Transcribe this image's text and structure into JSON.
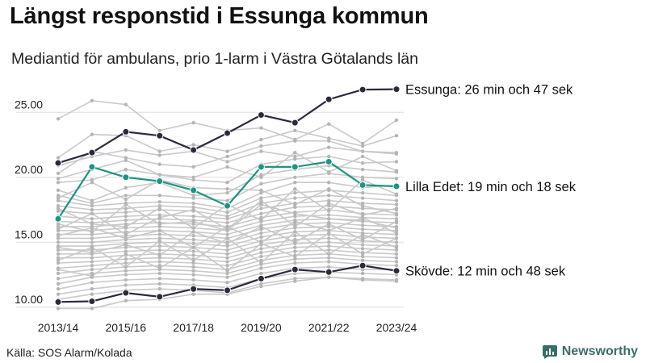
{
  "header": {
    "title": "Längst responstid i Essunga kommun",
    "subtitle": "Mediantid för ambulans, prio 1-larm i Västra Götalands län"
  },
  "footer": {
    "source": "Källa: SOS Alarm/Kolada",
    "brand": "Newsworthy"
  },
  "colors": {
    "background_series": "#c9c9c9",
    "background_points": "#b5b5b5",
    "highlight_dark": "#2b2a3d",
    "highlight_teal": "#1e9484",
    "grid": "#dddddd",
    "brand": "#3a6e68"
  },
  "chart_data": {
    "type": "line",
    "x": [
      "2013/14",
      "2014/15",
      "2015/16",
      "2016/17",
      "2017/18",
      "2018/19",
      "2019/20",
      "2020/21",
      "2021/22",
      "2022/23",
      "2023/24"
    ],
    "x_tick_labels": [
      "2013/14",
      "2015/16",
      "2017/18",
      "2019/20",
      "2021/22",
      "2023/24"
    ],
    "ylim": [
      9.8,
      27.5
    ],
    "y_ticks": [
      10,
      15,
      20,
      25
    ],
    "y_tick_labels": [
      "10.00",
      "15.00",
      "20.00",
      "25.00"
    ],
    "grid": true,
    "highlighted": [
      {
        "name": "Essunga",
        "label": "Essunga: 26 min och 47 sek",
        "color": "#2b2a3d",
        "values": [
          21.1,
          21.9,
          23.5,
          23.2,
          22.1,
          23.4,
          24.8,
          24.2,
          26.0,
          26.75,
          26.78
        ]
      },
      {
        "name": "Lilla Edet",
        "label": "Lilla Edet: 19 min och 18 sek",
        "color": "#1e9484",
        "values": [
          16.8,
          20.8,
          20.0,
          19.7,
          19.0,
          17.8,
          20.8,
          20.8,
          21.2,
          19.4,
          19.3
        ]
      },
      {
        "name": "Skövde",
        "label": "Skövde: 12 min och 48 sek",
        "color": "#2b2a3d",
        "values": [
          10.4,
          10.45,
          11.1,
          10.8,
          11.4,
          11.3,
          12.2,
          12.9,
          12.7,
          13.2,
          12.8
        ]
      }
    ],
    "other_series": [
      [
        24.5,
        25.9,
        25.6,
        23.6,
        24.2,
        23.6,
        23.8,
        22.9,
        24.1,
        22.6,
        24.4
      ],
      [
        21.5,
        23.3,
        23.2,
        22.0,
        22.5,
        22.0,
        22.9,
        23.6,
        23.0,
        22.4,
        23.2
      ],
      [
        20.3,
        22.0,
        21.5,
        21.0,
        20.8,
        21.6,
        22.4,
        22.8,
        22.8,
        22.0,
        21.8
      ],
      [
        19.6,
        19.8,
        20.6,
        20.2,
        19.8,
        19.6,
        21.0,
        21.4,
        21.6,
        21.1,
        21.2
      ],
      [
        19.0,
        18.2,
        19.2,
        19.6,
        18.6,
        18.8,
        20.2,
        20.6,
        20.9,
        20.6,
        20.4
      ],
      [
        18.6,
        18.0,
        18.6,
        18.6,
        18.4,
        18.2,
        19.5,
        20.0,
        20.3,
        20.0,
        19.9
      ],
      [
        18.2,
        17.8,
        18.0,
        18.1,
        18.0,
        17.6,
        18.8,
        19.6,
        19.6,
        19.2,
        19.4
      ],
      [
        17.8,
        17.5,
        17.6,
        17.8,
        17.7,
        17.3,
        18.4,
        18.8,
        19.0,
        18.8,
        18.6
      ],
      [
        17.4,
        17.2,
        17.3,
        17.5,
        17.4,
        17.0,
        18.0,
        18.4,
        18.6,
        18.4,
        18.2
      ],
      [
        17.0,
        16.8,
        17.0,
        17.1,
        17.0,
        16.8,
        17.6,
        18.0,
        18.2,
        18.0,
        17.9
      ],
      [
        16.6,
        16.5,
        16.7,
        16.8,
        16.7,
        16.5,
        17.2,
        17.7,
        17.8,
        17.6,
        17.5
      ],
      [
        16.2,
        16.2,
        16.4,
        16.5,
        16.4,
        16.2,
        16.9,
        17.3,
        17.5,
        17.2,
        17.1
      ],
      [
        15.9,
        15.9,
        16.1,
        16.2,
        16.1,
        15.9,
        16.6,
        17.0,
        17.1,
        16.9,
        16.8
      ],
      [
        15.6,
        15.6,
        15.8,
        15.9,
        15.8,
        15.6,
        16.3,
        16.7,
        16.8,
        16.6,
        16.5
      ],
      [
        15.3,
        15.3,
        15.5,
        15.6,
        15.5,
        15.3,
        16.0,
        16.4,
        16.5,
        16.3,
        16.2
      ],
      [
        15.0,
        15.0,
        15.2,
        15.3,
        15.2,
        15.0,
        15.7,
        16.1,
        16.2,
        16.0,
        15.9
      ],
      [
        14.7,
        14.7,
        14.9,
        15.0,
        14.9,
        14.7,
        15.4,
        15.8,
        15.9,
        15.7,
        15.6
      ],
      [
        14.4,
        14.4,
        14.6,
        14.7,
        14.6,
        14.4,
        15.1,
        15.5,
        15.6,
        15.4,
        15.3
      ],
      [
        14.1,
        14.1,
        14.3,
        14.4,
        14.3,
        14.1,
        14.8,
        15.2,
        15.3,
        15.1,
        15.0
      ],
      [
        13.8,
        13.8,
        14.0,
        14.1,
        14.0,
        13.8,
        14.5,
        14.9,
        15.0,
        14.8,
        14.7
      ],
      [
        13.4,
        13.5,
        13.7,
        13.8,
        13.7,
        13.5,
        14.2,
        14.6,
        14.7,
        14.5,
        14.4
      ],
      [
        13.0,
        13.2,
        13.4,
        13.5,
        13.4,
        13.2,
        13.9,
        14.3,
        14.4,
        14.2,
        14.1
      ],
      [
        12.6,
        12.9,
        13.1,
        13.2,
        13.1,
        12.9,
        13.6,
        14.0,
        14.1,
        13.9,
        13.8
      ],
      [
        12.2,
        12.6,
        12.8,
        12.9,
        12.8,
        12.6,
        13.3,
        13.7,
        13.8,
        13.6,
        13.5
      ],
      [
        11.8,
        12.3,
        12.5,
        12.6,
        12.5,
        12.3,
        13.0,
        13.4,
        13.5,
        13.3,
        13.2
      ],
      [
        11.4,
        11.9,
        12.1,
        12.2,
        12.1,
        11.9,
        12.6,
        13.0,
        13.1,
        12.9,
        12.9
      ],
      [
        11.0,
        11.4,
        11.7,
        11.8,
        11.7,
        11.5,
        12.2,
        12.6,
        12.7,
        12.6,
        12.5
      ],
      [
        10.6,
        11.0,
        11.3,
        11.4,
        11.3,
        11.1,
        11.8,
        12.2,
        12.3,
        12.2,
        12.1
      ],
      [
        9.9,
        9.9,
        10.5,
        10.6,
        11.0,
        11.0,
        11.6,
        12.0,
        12.3,
        12.1,
        12.0
      ],
      [
        20.9,
        21.6,
        22.1,
        21.7,
        22.0,
        21.2,
        22.0,
        21.6,
        22.3,
        22.0,
        21.9
      ],
      [
        19.9,
        20.6,
        21.3,
        20.2,
        20.0,
        20.8,
        20.0,
        21.9,
        20.4,
        21.6,
        20.5
      ],
      [
        18.4,
        19.6,
        18.3,
        19.8,
        19.2,
        19.1,
        19.0,
        17.9,
        19.1,
        17.8,
        17.2
      ],
      [
        16.4,
        15.8,
        17.9,
        16.4,
        16.6,
        15.9,
        17.9,
        17.2,
        16.8,
        16.7,
        16.1
      ],
      [
        15.5,
        16.1,
        15.3,
        15.9,
        14.6,
        16.2,
        15.0,
        16.6,
        15.9,
        16.9,
        15.7
      ],
      [
        14.6,
        14.2,
        14.8,
        14.0,
        15.8,
        14.9,
        16.2,
        15.0,
        16.4,
        15.2,
        16.6
      ],
      [
        13.6,
        14.6,
        13.1,
        15.1,
        13.6,
        15.3,
        13.4,
        15.8,
        14.1,
        15.6,
        14.6
      ],
      [
        12.9,
        12.4,
        14.1,
        13.0,
        14.6,
        12.8,
        14.9,
        13.9,
        15.7,
        14.1,
        15.3
      ],
      [
        17.6,
        16.4,
        16.2,
        17.6,
        16.1,
        17.9,
        16.7,
        19.1,
        17.4,
        19.8,
        18.7
      ],
      [
        16.0,
        17.2,
        15.6,
        16.9,
        17.5,
        16.0,
        18.2,
        16.2,
        18.0,
        17.1,
        17.6
      ]
    ]
  }
}
